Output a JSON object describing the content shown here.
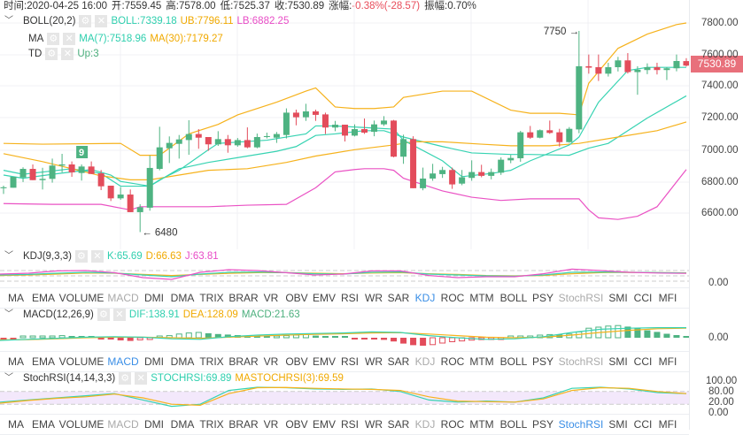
{
  "header": {
    "items": [
      {
        "label": "时间:",
        "value": "2020-04-25 16:00"
      },
      {
        "label": "开:",
        "value": "7559.45"
      },
      {
        "label": "高:",
        "value": "7578.00"
      },
      {
        "label": "低:",
        "value": "7525.37"
      },
      {
        "label": "收:",
        "value": "7530.89"
      },
      {
        "label": "涨幅:",
        "value": "-0.38%(-28.57)",
        "color": "#e84d5b"
      },
      {
        "label": "振幅:",
        "value": "0.70%"
      }
    ]
  },
  "main_indicators": {
    "boll": {
      "name": "BOLL(20,2)",
      "boll": "BOLL:7339.18",
      "ub": "UB:7796.11",
      "lb": "LB:6882.25"
    },
    "ma": {
      "name": "MA",
      "ma7": "MA(7):7518.96",
      "ma30": "MA(30):7179.27"
    },
    "td": {
      "name": "TD",
      "up": "Up:3"
    }
  },
  "colors": {
    "up": "#4eb382",
    "down": "#e34c5b",
    "teal": "#37d3b2",
    "orange": "#f6b21c",
    "pink": "#ea52c4",
    "active_tab": "#3a8ee6"
  },
  "price_axis": [
    "7800.00",
    "7600.00",
    "7400.00",
    "7200.00",
    "7000.00",
    "6800.00",
    "6600.00"
  ],
  "last_price": "7530.89",
  "chart_data": {
    "type": "candlestick",
    "ylim": [
      6600,
      7800
    ],
    "candles_ohlc": [
      [
        6757,
        6773,
        6721,
        6763
      ],
      [
        6760,
        6829,
        6760,
        6829
      ],
      [
        6825,
        6889,
        6796,
        6879
      ],
      [
        6879,
        6907,
        6808,
        6808
      ],
      [
        6808,
        6886,
        6749,
        6816
      ],
      [
        6816,
        6944,
        6792,
        6900
      ],
      [
        6900,
        6974,
        6857,
        6907
      ],
      [
        6907,
        6926,
        6829,
        6857
      ],
      [
        6853,
        6907,
        6805,
        6894
      ],
      [
        6894,
        6926,
        6847,
        6847
      ],
      [
        6851,
        6872,
        6745,
        6769
      ],
      [
        6773,
        6773,
        6676,
        6693
      ],
      [
        6693,
        6764,
        6684,
        6717
      ],
      [
        6717,
        6749,
        6606,
        6606
      ],
      [
        6606,
        6656,
        6480,
        6637
      ],
      [
        6634,
        6963,
        6615,
        6885
      ],
      [
        6879,
        7145,
        6870,
        7015
      ],
      [
        7009,
        7084,
        6916,
        7043
      ],
      [
        7037,
        7093,
        6944,
        7065
      ],
      [
        7061,
        7186,
        6968,
        7099
      ],
      [
        7099,
        7130,
        7006,
        7076
      ],
      [
        7080,
        7080,
        6993,
        7034
      ],
      [
        7034,
        7117,
        7024,
        7067
      ],
      [
        7067,
        7093,
        6981,
        7028
      ],
      [
        7028,
        7074,
        7019,
        7061
      ],
      [
        7061,
        7141,
        7009,
        7015
      ],
      [
        7015,
        7102,
        7009,
        7080
      ],
      [
        7080,
        7108,
        7071,
        7086
      ],
      [
        7076,
        7112,
        7043,
        7099
      ],
      [
        7093,
        7261,
        7071,
        7234
      ],
      [
        7234,
        7253,
        7154,
        7205
      ],
      [
        7205,
        7290,
        7182,
        7242
      ],
      [
        7242,
        7253,
        7182,
        7220
      ],
      [
        7223,
        7234,
        7099,
        7140
      ],
      [
        7140,
        7182,
        7117,
        7158
      ],
      [
        7158,
        7158,
        7052,
        7089
      ],
      [
        7089,
        7160,
        7084,
        7130
      ],
      [
        7130,
        7197,
        7100,
        7108
      ],
      [
        7113,
        7184,
        7085,
        7160
      ],
      [
        7160,
        7212,
        7150,
        7184
      ],
      [
        7184,
        7188,
        6952,
        6956
      ],
      [
        6956,
        7095,
        6911,
        7067
      ],
      [
        7067,
        7085,
        6757,
        6757
      ],
      [
        6757,
        6887,
        6744,
        6818
      ],
      [
        6818,
        6911,
        6804,
        6850
      ],
      [
        6846,
        6892,
        6822,
        6872
      ],
      [
        6872,
        6887,
        6753,
        6781
      ],
      [
        6786,
        6872,
        6776,
        6826
      ],
      [
        6822,
        6933,
        6804,
        6859
      ],
      [
        6859,
        6905,
        6826,
        6835
      ],
      [
        6835,
        6881,
        6813,
        6859
      ],
      [
        6855,
        6952,
        6841,
        6937
      ],
      [
        6933,
        6967,
        6915,
        6948
      ],
      [
        6946,
        7119,
        6924,
        7110
      ],
      [
        7110,
        7150,
        7069,
        7076
      ],
      [
        7076,
        7128,
        7072,
        7123
      ],
      [
        7123,
        7184,
        7100,
        7106
      ],
      [
        7110,
        7132,
        7020,
        7048
      ],
      [
        7048,
        7143,
        7044,
        7132
      ],
      [
        7128,
        7750,
        7104,
        7527
      ],
      [
        7527,
        7601,
        7480,
        7518
      ],
      [
        7521,
        7601,
        7434,
        7480
      ],
      [
        7480,
        7549,
        7462,
        7521
      ],
      [
        7521,
        7586,
        7494,
        7564
      ],
      [
        7564,
        7610,
        7481,
        7490
      ],
      [
        7490,
        7527,
        7347,
        7505
      ],
      [
        7503,
        7545,
        7477,
        7521
      ],
      [
        7521,
        7549,
        7475,
        7503
      ],
      [
        7503,
        7521,
        7440,
        7514
      ],
      [
        7514,
        7601,
        7495,
        7560
      ],
      [
        7559.45,
        7578,
        7525.37,
        7530.89
      ]
    ],
    "lines": {
      "ub": [
        [
          0,
          7040
        ],
        [
          4,
          7035
        ],
        [
          12,
          7040
        ],
        [
          14,
          6965
        ],
        [
          16,
          6965
        ],
        [
          19,
          7100
        ],
        [
          22,
          7160
        ],
        [
          24,
          7220
        ],
        [
          28,
          7300
        ],
        [
          31,
          7370
        ],
        [
          32,
          7390
        ],
        [
          34,
          7270
        ],
        [
          36,
          7260
        ],
        [
          38,
          7260
        ],
        [
          40,
          7270
        ],
        [
          41,
          7330
        ],
        [
          45,
          7370
        ],
        [
          48,
          7370
        ],
        [
          52,
          7250
        ],
        [
          54,
          7230
        ],
        [
          57,
          7230
        ],
        [
          59,
          7220
        ],
        [
          60,
          7420
        ],
        [
          63,
          7640
        ],
        [
          66,
          7730
        ],
        [
          69,
          7790
        ],
        [
          70,
          7800
        ]
      ],
      "boll": [
        [
          0,
          6870
        ],
        [
          2,
          6845
        ],
        [
          7,
          6880
        ],
        [
          10,
          6850
        ],
        [
          12,
          6770
        ],
        [
          15,
          6770
        ],
        [
          18,
          6880
        ],
        [
          21,
          6920
        ],
        [
          25,
          6960
        ],
        [
          28,
          6990
        ],
        [
          30,
          7020
        ],
        [
          32,
          7090
        ],
        [
          34,
          7100
        ],
        [
          37,
          7120
        ],
        [
          39,
          7120
        ],
        [
          41,
          7080
        ],
        [
          45,
          7020
        ],
        [
          48,
          6980
        ],
        [
          52,
          6970
        ],
        [
          54,
          6970
        ],
        [
          58,
          6965
        ],
        [
          60,
          7010
        ],
        [
          62,
          7040
        ],
        [
          66,
          7200
        ],
        [
          70,
          7340
        ]
      ],
      "lb": [
        [
          0,
          6660
        ],
        [
          5,
          6655
        ],
        [
          10,
          6655
        ],
        [
          13,
          6620
        ],
        [
          14,
          6640
        ],
        [
          21,
          6640
        ],
        [
          25,
          6650
        ],
        [
          29,
          6655
        ],
        [
          32,
          6760
        ],
        [
          34,
          6860
        ],
        [
          36,
          6875
        ],
        [
          37,
          6880
        ],
        [
          39,
          6880
        ],
        [
          40,
          6870
        ],
        [
          41,
          6820
        ],
        [
          42,
          6800
        ],
        [
          45,
          6740
        ],
        [
          48,
          6700
        ],
        [
          51,
          6680
        ],
        [
          54,
          6690
        ],
        [
          59,
          6690
        ],
        [
          60,
          6620
        ],
        [
          61,
          6570
        ],
        [
          63,
          6560
        ],
        [
          65,
          6580
        ],
        [
          67,
          6640
        ],
        [
          70,
          6875
        ]
      ],
      "ma30": [
        [
          0,
          6975
        ],
        [
          4,
          6925
        ],
        [
          7,
          6880
        ],
        [
          10,
          6835
        ],
        [
          13,
          6810
        ],
        [
          15,
          6810
        ],
        [
          18,
          6840
        ],
        [
          21,
          6870
        ],
        [
          25,
          6880
        ],
        [
          29,
          6920
        ],
        [
          32,
          6960
        ],
        [
          36,
          7000
        ],
        [
          40,
          7030
        ],
        [
          42,
          7050
        ],
        [
          45,
          7050
        ],
        [
          49,
          7035
        ],
        [
          52,
          7025
        ],
        [
          56,
          7025
        ],
        [
          59,
          7040
        ],
        [
          63,
          7080
        ],
        [
          67,
          7120
        ],
        [
          70,
          7175
        ]
      ],
      "ma7": [
        [
          0,
          6840
        ],
        [
          2,
          6820
        ],
        [
          5,
          6845
        ],
        [
          9,
          6875
        ],
        [
          11,
          6840
        ],
        [
          12,
          6800
        ],
        [
          15,
          6770
        ],
        [
          16,
          6810
        ],
        [
          18,
          6870
        ],
        [
          21,
          7000
        ],
        [
          22,
          7040
        ],
        [
          27,
          7060
        ],
        [
          31,
          7100
        ],
        [
          32,
          7150
        ],
        [
          34,
          7150
        ],
        [
          37,
          7140
        ],
        [
          40,
          7130
        ],
        [
          41,
          7060
        ],
        [
          45,
          6930
        ],
        [
          47,
          6830
        ],
        [
          50,
          6850
        ],
        [
          52,
          6870
        ],
        [
          54,
          6930
        ],
        [
          58,
          7030
        ],
        [
          59,
          7080
        ],
        [
          61,
          7300
        ],
        [
          64,
          7500
        ],
        [
          66,
          7520
        ],
        [
          70,
          7520
        ]
      ]
    },
    "annotations": {
      "high": "7750",
      "low": "6480",
      "td_count": "9"
    }
  },
  "kdj": {
    "name": "KDJ(9,3,3)",
    "k": "K:65.69",
    "d": "D:66.63",
    "j": "J:63.81",
    "axis": "0.00",
    "series_k": [
      55,
      58,
      65,
      70,
      66,
      55,
      45,
      60,
      70,
      72,
      68,
      62,
      60,
      70,
      72,
      60,
      55,
      50,
      48,
      55,
      70,
      72,
      70,
      68,
      66
    ],
    "series_d": [
      52,
      55,
      60,
      66,
      65,
      58,
      52,
      58,
      64,
      68,
      68,
      65,
      62,
      66,
      68,
      62,
      58,
      52,
      50,
      52,
      62,
      68,
      70,
      68,
      67
    ],
    "series_j": [
      60,
      65,
      78,
      80,
      68,
      40,
      30,
      70,
      85,
      80,
      68,
      55,
      60,
      78,
      78,
      52,
      40,
      45,
      45,
      62,
      88,
      80,
      70,
      66,
      64
    ]
  },
  "macd": {
    "name": "MACD(12,26,9)",
    "dif": "DIF:138.91",
    "dea": "DEA:128.09",
    "macd": "MACD:21.63",
    "axis": "0.00",
    "hist": [
      -3,
      -3,
      2,
      3,
      4,
      6,
      8,
      6,
      5,
      4,
      -3,
      -6,
      -10,
      -12,
      -8,
      -4,
      3,
      8,
      14,
      18,
      20,
      17,
      14,
      12,
      10,
      8,
      6,
      4,
      6,
      8,
      10,
      12,
      8,
      4,
      3,
      3,
      -2,
      -4,
      -5,
      -8,
      -14,
      -22,
      -28,
      -30,
      -26,
      -20,
      -15,
      -12,
      -9,
      -7,
      -5,
      -3,
      2,
      3,
      6,
      10,
      12,
      12,
      14,
      22,
      36,
      40,
      44,
      46,
      42,
      36,
      28,
      22,
      15,
      10,
      6
    ],
    "series_dif": [
      -10,
      -6,
      -2,
      2,
      4,
      2,
      -4,
      -6,
      4,
      10,
      14,
      16,
      18,
      22,
      20,
      8,
      0,
      -6,
      -4,
      4,
      20,
      32,
      36,
      38,
      38
    ],
    "series_dea": [
      -8,
      -7,
      -4,
      0,
      2,
      2,
      0,
      -2,
      2,
      6,
      10,
      13,
      15,
      18,
      19,
      14,
      8,
      2,
      0,
      2,
      10,
      20,
      28,
      34,
      36
    ]
  },
  "stochrsi": {
    "name": "StochRSI(14,14,3,3)",
    "stochrsi": "STOCHRSI:69.89",
    "ma": "MASTOCHRSI(3):69.59",
    "axis": [
      "100.00",
      "80.00",
      "20.00",
      "0.00"
    ],
    "series_k": [
      30,
      40,
      50,
      60,
      70,
      40,
      10,
      20,
      85,
      100,
      98,
      92,
      90,
      92,
      80,
      40,
      30,
      35,
      30,
      50,
      95,
      100,
      92,
      75,
      70
    ],
    "series_d": [
      25,
      38,
      48,
      55,
      68,
      50,
      20,
      15,
      70,
      98,
      99,
      95,
      92,
      90,
      85,
      55,
      35,
      32,
      30,
      45,
      85,
      98,
      95,
      80,
      70
    ]
  },
  "tabs": [
    "MA",
    "EMA",
    "VOLUME",
    "MACD",
    "DMI",
    "DMA",
    "TRIX",
    "BRAR",
    "VR",
    "OBV",
    "EMV",
    "RSI",
    "WR",
    "SAR",
    "KDJ",
    "ROC",
    "MTM",
    "BOLL",
    "PSY",
    "StochRSI",
    "SMI",
    "CCI",
    "MFI"
  ],
  "tab_bars": [
    {
      "active": "KDJ",
      "disabled": [
        "MACD",
        "StochRSI"
      ]
    },
    {
      "active": "MACD",
      "disabled": [
        "KDJ",
        "StochRSI"
      ]
    },
    {
      "active": "StochRSI",
      "disabled": [
        "MACD",
        "KDJ"
      ]
    }
  ]
}
